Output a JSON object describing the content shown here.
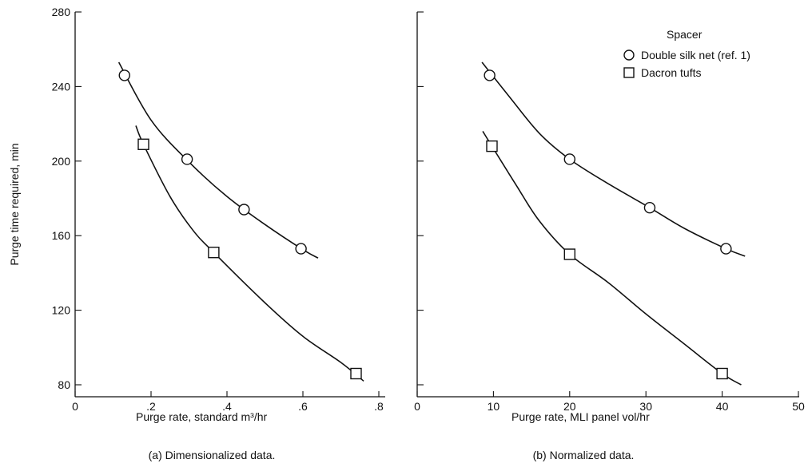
{
  "chart_data": [
    {
      "type": "line",
      "caption": "(a) Dimensionalized data.",
      "xlabel": "Purge rate, standard m³/hr",
      "ylabel": "Purge time required, min",
      "xlim": [
        0,
        0.8
      ],
      "ylim": [
        80,
        280
      ],
      "x_ticks": [
        0,
        0.2,
        0.4,
        0.6,
        0.8
      ],
      "x_tick_labels": [
        "0",
        ".2",
        ".4",
        ".6",
        ".8"
      ],
      "y_ticks": [
        80,
        120,
        160,
        200,
        240,
        280
      ],
      "y_tick_labels": [
        "80",
        "120",
        "160",
        "200",
        "240",
        "280"
      ],
      "grid": false,
      "series": [
        {
          "name": "Double silk net (ref. 1)",
          "marker": "circle",
          "points": [
            [
              0.13,
              246
            ],
            [
              0.295,
              201
            ],
            [
              0.445,
              174
            ],
            [
              0.595,
              153
            ]
          ],
          "curve": [
            [
              0.115,
              253
            ],
            [
              0.2,
              222
            ],
            [
              0.3,
              199.5
            ],
            [
              0.4,
              181
            ],
            [
              0.5,
              166
            ],
            [
              0.6,
              152.5
            ],
            [
              0.64,
              148
            ]
          ]
        },
        {
          "name": "Dacron tufts",
          "marker": "square",
          "points": [
            [
              0.18,
              209
            ],
            [
              0.365,
              151
            ],
            [
              0.74,
              86
            ]
          ],
          "curve": [
            [
              0.16,
              219
            ],
            [
              0.18,
              209
            ],
            [
              0.25,
              181
            ],
            [
              0.31,
              163
            ],
            [
              0.365,
              151
            ],
            [
              0.5,
              124
            ],
            [
              0.6,
              106
            ],
            [
              0.7,
              92
            ],
            [
              0.76,
              82
            ]
          ]
        }
      ]
    },
    {
      "type": "line",
      "caption": "(b) Normalized data.",
      "xlabel": "Purge rate, MLI panel vol/hr",
      "ylabel": "",
      "xlim": [
        0,
        50
      ],
      "ylim": [
        80,
        280
      ],
      "x_ticks": [
        0,
        10,
        20,
        30,
        40,
        50
      ],
      "x_tick_labels": [
        "0",
        "10",
        "20",
        "30",
        "40",
        "50"
      ],
      "y_ticks": [
        80,
        120,
        160,
        200,
        240,
        280
      ],
      "y_tick_labels": [],
      "grid": false,
      "legend": {
        "title": "Spacer",
        "placement": "top-right",
        "entries": [
          {
            "label": "Double silk net (ref. 1)",
            "marker": "circle"
          },
          {
            "label": "Dacron tufts",
            "marker": "square"
          }
        ]
      },
      "series": [
        {
          "name": "Double silk net (ref. 1)",
          "marker": "circle",
          "points": [
            [
              9.5,
              246
            ],
            [
              20,
              201
            ],
            [
              30.5,
              175
            ],
            [
              40.5,
              153
            ]
          ],
          "curve": [
            [
              8.5,
              253
            ],
            [
              12,
              235
            ],
            [
              16,
              215
            ],
            [
              20,
              201
            ],
            [
              25,
              188
            ],
            [
              30.5,
              175
            ],
            [
              35,
              164
            ],
            [
              40.5,
              153
            ],
            [
              43,
              149
            ]
          ]
        },
        {
          "name": "Dacron tufts",
          "marker": "square",
          "points": [
            [
              9.8,
              208
            ],
            [
              20,
              150
            ],
            [
              40,
              86
            ]
          ],
          "curve": [
            [
              8.6,
              216
            ],
            [
              9.8,
              208
            ],
            [
              13,
              187
            ],
            [
              16,
              168
            ],
            [
              20,
              150
            ],
            [
              25,
              135
            ],
            [
              30,
              118
            ],
            [
              35,
              102
            ],
            [
              40,
              86
            ],
            [
              42.5,
              80
            ]
          ]
        }
      ]
    }
  ]
}
